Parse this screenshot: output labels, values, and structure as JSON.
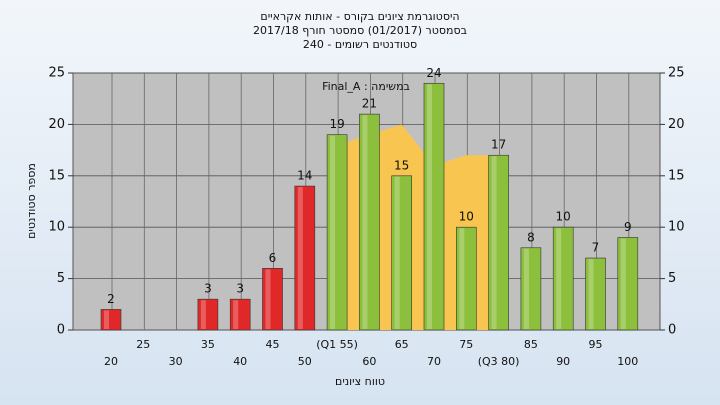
{
  "chart_data": {
    "type": "bar",
    "title": "היסטוגרמת ציונים בקורס - אותות אקראיים",
    "subtitle": "בסמסטר  (01/2017)  סמסטר חורף 2017/18",
    "subtitle2": "240 - סטודנטים רשומים",
    "annotation": "Final_A : במשימה",
    "x_label": "טווח ציונים",
    "y_label": "מספר סטודנטים",
    "categories": [
      "20",
      "25",
      "30",
      "35",
      "40",
      "45",
      "50",
      "(Q1 55)",
      "60",
      "65",
      "70",
      "75",
      "(Q3 80)",
      "85",
      "90",
      "95",
      "100"
    ],
    "series": [
      {
        "color": "#e02828",
        "values": [
          2,
          null,
          null,
          3,
          3,
          6,
          14,
          null,
          null,
          null,
          null,
          null,
          null,
          null,
          null,
          null,
          null
        ]
      },
      {
        "color": "#8cbf3c",
        "values": [
          null,
          null,
          null,
          null,
          null,
          null,
          null,
          19,
          21,
          15,
          24,
          10,
          17,
          8,
          10,
          7,
          9
        ]
      }
    ],
    "area": {
      "color": "#f7c550",
      "values": [
        null,
        null,
        null,
        null,
        null,
        null,
        null,
        18,
        19,
        20,
        16,
        17,
        17,
        null,
        null,
        null,
        null
      ]
    },
    "ylim": [
      0,
      25
    ],
    "yticks": [
      0,
      5,
      10,
      15,
      20,
      25
    ],
    "y2lim": [
      0,
      25
    ],
    "y2ticks": [
      0,
      5,
      10,
      15,
      20,
      25
    ],
    "grid": true
  }
}
